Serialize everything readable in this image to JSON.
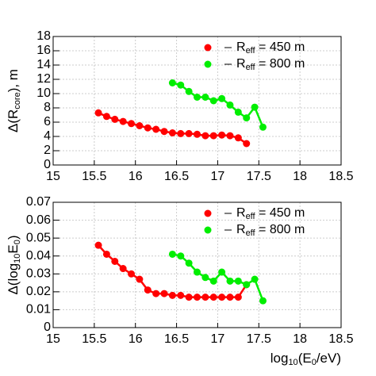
{
  "chart_data": [
    {
      "type": "line",
      "ylabel": [
        "Δ(R",
        "core",
        "), m"
      ],
      "xlim": [
        15,
        18.5
      ],
      "xticks": [
        15,
        15.5,
        16,
        16.5,
        17,
        17.5,
        18,
        18.5
      ],
      "ylim": [
        0,
        18
      ],
      "yticks": [
        0,
        2,
        4,
        6,
        8,
        10,
        12,
        14,
        16,
        18
      ],
      "grid": true,
      "legend": "upper right",
      "series": [
        {
          "name": [
            "R",
            "eff",
            " = 450 m"
          ],
          "color": "#ff0000",
          "x": [
            15.55,
            15.65,
            15.75,
            15.85,
            15.95,
            16.05,
            16.15,
            16.25,
            16.35,
            16.45,
            16.55,
            16.65,
            16.75,
            16.85,
            16.95,
            17.05,
            17.15,
            17.25,
            17.35
          ],
          "values": [
            7.3,
            6.8,
            6.4,
            6.1,
            5.8,
            5.5,
            5.2,
            5.0,
            4.7,
            4.5,
            4.4,
            4.4,
            4.3,
            4.1,
            4.1,
            4.2,
            4.1,
            3.8,
            3.0
          ]
        },
        {
          "name": [
            "R",
            "eff",
            " = 800 m"
          ],
          "color": "#00ee00",
          "x": [
            16.45,
            16.55,
            16.65,
            16.75,
            16.85,
            16.95,
            17.05,
            17.15,
            17.25,
            17.35,
            17.45,
            17.55
          ],
          "values": [
            11.5,
            11.2,
            10.3,
            9.5,
            9.5,
            9.0,
            9.3,
            8.4,
            7.4,
            6.6,
            8.1,
            5.3
          ]
        }
      ]
    },
    {
      "type": "line",
      "ylabel": [
        "Δ(log",
        "10",
        "E",
        "0",
        ")"
      ],
      "xlabel": [
        "log",
        "10",
        "(E",
        "0",
        "/eV)"
      ],
      "xlim": [
        15,
        18.5
      ],
      "xticks": [
        15,
        15.5,
        16,
        16.5,
        17,
        17.5,
        18,
        18.5
      ],
      "ylim": [
        0,
        0.07
      ],
      "yticks": [
        0,
        0.01,
        0.02,
        0.03,
        0.04,
        0.05,
        0.06,
        0.07
      ],
      "grid": true,
      "legend": "upper right",
      "series": [
        {
          "name": [
            "R",
            "eff",
            " = 450 m"
          ],
          "color": "#ff0000",
          "x": [
            15.55,
            15.65,
            15.75,
            15.85,
            15.95,
            16.05,
            16.15,
            16.25,
            16.35,
            16.45,
            16.55,
            16.65,
            16.75,
            16.85,
            16.95,
            17.05,
            17.15,
            17.25,
            17.35
          ],
          "values": [
            0.046,
            0.041,
            0.037,
            0.033,
            0.03,
            0.027,
            0.021,
            0.019,
            0.019,
            0.018,
            0.018,
            0.017,
            0.017,
            0.017,
            0.017,
            0.017,
            0.017,
            0.017,
            0.024
          ]
        },
        {
          "name": [
            "R",
            "eff",
            " = 800 m"
          ],
          "color": "#00ee00",
          "x": [
            16.45,
            16.55,
            16.65,
            16.75,
            16.85,
            16.95,
            17.05,
            17.15,
            17.25,
            17.35,
            17.45,
            17.55
          ],
          "values": [
            0.041,
            0.04,
            0.036,
            0.031,
            0.028,
            0.026,
            0.031,
            0.026,
            0.026,
            0.024,
            0.027,
            0.015
          ]
        }
      ]
    }
  ]
}
